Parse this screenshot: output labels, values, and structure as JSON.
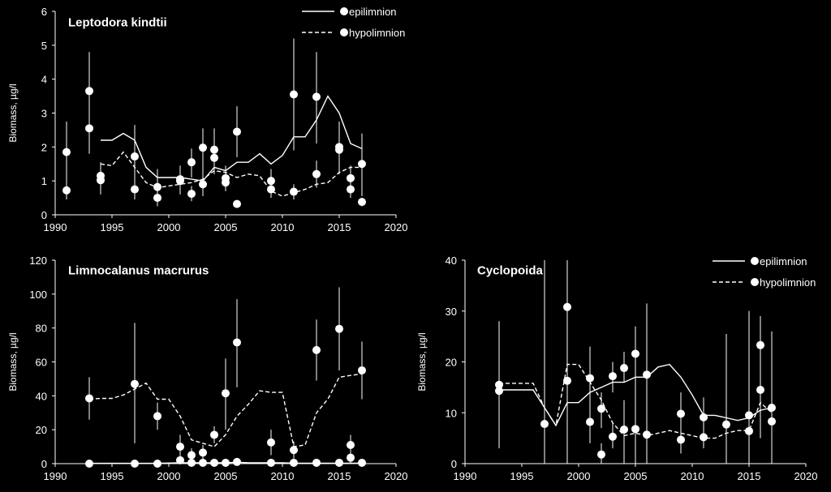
{
  "colors": {
    "background": "#000000",
    "foreground": "#ffffff"
  },
  "chart_data": [
    {
      "type": "scatter",
      "title": "Leptodora kindtii",
      "ylabel": "Biomass, µg/l",
      "xlabel": "",
      "xlim": [
        1990,
        2020
      ],
      "ylim": [
        0,
        6
      ],
      "xticks": [
        1990,
        1995,
        2000,
        2005,
        2010,
        2015,
        2020
      ],
      "yticks": [
        0,
        1,
        2,
        3,
        4,
        5,
        6
      ],
      "grid": false,
      "legend_position": "top-right",
      "legend": [
        {
          "label": "epilimnion",
          "line": "solid"
        },
        {
          "label": "hypolimnion",
          "line": "dashed"
        }
      ],
      "lines": [
        {
          "name": "epilimnion",
          "style": "solid",
          "x": [
            1994,
            1995,
            1996,
            1997,
            1998,
            1999,
            2000,
            2001,
            2002,
            2003,
            2004,
            2005,
            2006,
            2007,
            2008,
            2009,
            2010,
            2011,
            2012,
            2013,
            2014,
            2015,
            2016,
            2017
          ],
          "y": [
            2.2,
            2.2,
            2.4,
            2.2,
            1.4,
            1.1,
            1.1,
            1.1,
            1.05,
            1.0,
            1.4,
            1.3,
            1.55,
            1.55,
            1.8,
            1.5,
            1.75,
            2.3,
            2.3,
            2.8,
            3.5,
            3.0,
            2.1,
            1.95
          ]
        },
        {
          "name": "hypolimnion",
          "style": "dashed",
          "x": [
            1994,
            1995,
            1996,
            1997,
            1998,
            1999,
            2000,
            2001,
            2002,
            2003,
            2004,
            2005,
            2006,
            2007,
            2008,
            2009,
            2010,
            2011,
            2012,
            2013,
            2014,
            2015,
            2016,
            2017
          ],
          "y": [
            1.5,
            1.45,
            1.85,
            1.4,
            0.95,
            0.8,
            0.85,
            0.9,
            0.95,
            1.05,
            1.3,
            1.25,
            1.1,
            1.2,
            1.15,
            0.7,
            0.55,
            0.65,
            0.75,
            0.9,
            0.95,
            1.25,
            1.4,
            1.4
          ]
        }
      ],
      "points": [
        {
          "x": 1991,
          "y": 1.85,
          "lo": 0.7,
          "hi": 2.75
        },
        {
          "x": 1991,
          "y": 0.72,
          "lo": 0.45,
          "hi": 1.0
        },
        {
          "x": 1993,
          "y": 3.65,
          "lo": 2.5,
          "hi": 4.8
        },
        {
          "x": 1993,
          "y": 2.55,
          "lo": 1.8,
          "hi": 3.3
        },
        {
          "x": 1994,
          "y": 1.15,
          "lo": 0.75,
          "hi": 1.55
        },
        {
          "x": 1994,
          "y": 1.02,
          "lo": 0.6,
          "hi": 1.35
        },
        {
          "x": 1997,
          "y": 1.72,
          "lo": 0.8,
          "hi": 2.65
        },
        {
          "x": 1997,
          "y": 0.75,
          "lo": 0.45,
          "hi": 1.0
        },
        {
          "x": 1999,
          "y": 0.82,
          "lo": 0.25,
          "hi": 1.35
        },
        {
          "x": 1999,
          "y": 0.5,
          "lo": 0.25,
          "hi": 0.75
        },
        {
          "x": 2001,
          "y": 1.05,
          "lo": 0.6,
          "hi": 1.45
        },
        {
          "x": 2001,
          "y": 1.0,
          "lo": 0.7,
          "hi": 1.3
        },
        {
          "x": 2002,
          "y": 1.55,
          "lo": 1.1,
          "hi": 1.95
        },
        {
          "x": 2002,
          "y": 0.62,
          "lo": 0.4,
          "hi": 0.85
        },
        {
          "x": 2003,
          "y": 1.98,
          "lo": 1.2,
          "hi": 2.55
        },
        {
          "x": 2003,
          "y": 0.9,
          "lo": 0.55,
          "hi": 1.25
        },
        {
          "x": 2004,
          "y": 1.92,
          "lo": 1.2,
          "hi": 2.55
        },
        {
          "x": 2004,
          "y": 1.68,
          "lo": 1.2,
          "hi": 2.1
        },
        {
          "x": 2005,
          "y": 1.08,
          "lo": 0.7,
          "hi": 1.45
        },
        {
          "x": 2005,
          "y": 0.95,
          "lo": 0.7,
          "hi": 1.25
        },
        {
          "x": 2006,
          "y": 2.45,
          "lo": 1.7,
          "hi": 3.2
        },
        {
          "x": 2006,
          "y": 0.32,
          "lo": 0.32,
          "hi": 0.32
        },
        {
          "x": 2009,
          "y": 1.0,
          "lo": 0.6,
          "hi": 1.35
        },
        {
          "x": 2009,
          "y": 0.75,
          "lo": 0.5,
          "hi": 1.0
        },
        {
          "x": 2011,
          "y": 3.55,
          "lo": 1.9,
          "hi": 5.2
        },
        {
          "x": 2011,
          "y": 0.68,
          "lo": 0.45,
          "hi": 0.9
        },
        {
          "x": 2013,
          "y": 3.48,
          "lo": 2.1,
          "hi": 4.8
        },
        {
          "x": 2013,
          "y": 1.2,
          "lo": 0.8,
          "hi": 1.6
        },
        {
          "x": 2015,
          "y": 2.0,
          "lo": 1.2,
          "hi": 2.75
        },
        {
          "x": 2015,
          "y": 1.92,
          "lo": 1.6,
          "hi": 2.2
        },
        {
          "x": 2016,
          "y": 1.08,
          "lo": 0.75,
          "hi": 1.45
        },
        {
          "x": 2016,
          "y": 0.75,
          "lo": 0.5,
          "hi": 1.0
        },
        {
          "x": 2017,
          "y": 1.5,
          "lo": 0.55,
          "hi": 2.4
        },
        {
          "x": 2017,
          "y": 0.38,
          "lo": 0.25,
          "hi": 0.5
        }
      ]
    },
    {
      "type": "scatter",
      "title": "Limnocalanus macrurus",
      "ylabel": "Biomass, µg/l",
      "xlabel": "",
      "xlim": [
        1990,
        2020
      ],
      "ylim": [
        0,
        120
      ],
      "xticks": [
        1990,
        1995,
        2000,
        2005,
        2010,
        2015,
        2020
      ],
      "yticks": [
        0,
        20,
        40,
        60,
        80,
        100,
        120
      ],
      "grid": false,
      "legend": [],
      "lines": [
        {
          "name": "epilimnion",
          "style": "solid",
          "x": [
            1993,
            1995,
            1997,
            1999,
            2001,
            2002,
            2003,
            2004,
            2005,
            2006,
            2007,
            2008,
            2009,
            2010,
            2011,
            2012,
            2013,
            2014,
            2015,
            2016,
            2017
          ],
          "y": [
            0.2,
            0.2,
            0.2,
            0.2,
            0.5,
            0.5,
            0.5,
            0.5,
            0.5,
            0.8,
            0.5,
            0.5,
            0.5,
            0.5,
            0.3,
            0.3,
            0.3,
            0.3,
            0.3,
            0.3,
            0.3
          ]
        },
        {
          "name": "hypolimnion",
          "style": "dashed",
          "x": [
            1993,
            1994,
            1995,
            1996,
            1997,
            1998,
            1999,
            2000,
            2001,
            2002,
            2003,
            2004,
            2005,
            2006,
            2007,
            2008,
            2009,
            2010,
            2011,
            2012,
            2013,
            2014,
            2015,
            2016,
            2017
          ],
          "y": [
            38,
            38.5,
            38.5,
            40.5,
            44,
            47.5,
            38,
            38,
            28,
            14,
            12,
            10,
            17,
            28,
            35,
            43,
            42,
            42,
            10,
            11,
            30,
            38,
            51,
            52,
            53
          ]
        }
      ],
      "points": [
        {
          "x": 1993,
          "y": 38.5,
          "lo": 26,
          "hi": 51
        },
        {
          "x": 1993,
          "y": 0,
          "lo": 0,
          "hi": 0
        },
        {
          "x": 1997,
          "y": 47,
          "lo": 12,
          "hi": 83
        },
        {
          "x": 1997,
          "y": 0,
          "lo": 0,
          "hi": 0
        },
        {
          "x": 1999,
          "y": 28,
          "lo": 20,
          "hi": 36
        },
        {
          "x": 1999,
          "y": 0,
          "lo": 0,
          "hi": 0
        },
        {
          "x": 2001,
          "y": 10,
          "lo": 3,
          "hi": 17
        },
        {
          "x": 2001,
          "y": 2,
          "lo": 0,
          "hi": 4
        },
        {
          "x": 2002,
          "y": 5,
          "lo": 0,
          "hi": 9
        },
        {
          "x": 2002,
          "y": 0.5,
          "lo": 0,
          "hi": 1
        },
        {
          "x": 2003,
          "y": 6.5,
          "lo": 2,
          "hi": 11
        },
        {
          "x": 2003,
          "y": 0.5,
          "lo": 0,
          "hi": 1
        },
        {
          "x": 2004,
          "y": 17,
          "lo": 12,
          "hi": 22
        },
        {
          "x": 2004,
          "y": 0.5,
          "lo": 0,
          "hi": 1
        },
        {
          "x": 2005,
          "y": 41.5,
          "lo": 20,
          "hi": 62
        },
        {
          "x": 2005,
          "y": 0.5,
          "lo": 0,
          "hi": 1
        },
        {
          "x": 2006,
          "y": 71.5,
          "lo": 45,
          "hi": 97
        },
        {
          "x": 2006,
          "y": 1,
          "lo": 0,
          "hi": 2
        },
        {
          "x": 2009,
          "y": 12.5,
          "lo": 5,
          "hi": 20
        },
        {
          "x": 2009,
          "y": 0.5,
          "lo": 0,
          "hi": 1
        },
        {
          "x": 2011,
          "y": 8,
          "lo": 3,
          "hi": 13
        },
        {
          "x": 2011,
          "y": 0.5,
          "lo": 0,
          "hi": 1
        },
        {
          "x": 2013,
          "y": 67,
          "lo": 49,
          "hi": 85
        },
        {
          "x": 2013,
          "y": 0.5,
          "lo": 0,
          "hi": 1
        },
        {
          "x": 2015,
          "y": 79.5,
          "lo": 55,
          "hi": 104
        },
        {
          "x": 2015,
          "y": 0.5,
          "lo": 0,
          "hi": 1
        },
        {
          "x": 2016,
          "y": 11,
          "lo": 5,
          "hi": 17
        },
        {
          "x": 2016,
          "y": 3.5,
          "lo": 0,
          "hi": 7
        },
        {
          "x": 2017,
          "y": 55,
          "lo": 38,
          "hi": 72
        },
        {
          "x": 2017,
          "y": 0.5,
          "lo": 0,
          "hi": 1
        }
      ]
    },
    {
      "type": "scatter",
      "title": "Cyclopoida",
      "ylabel": "Biomass, µg/l",
      "xlabel": "",
      "xlim": [
        1990,
        2020
      ],
      "ylim": [
        0,
        40
      ],
      "xticks": [
        1990,
        1995,
        2000,
        2005,
        2010,
        2015,
        2020
      ],
      "yticks": [
        0,
        10,
        20,
        30,
        40
      ],
      "grid": false,
      "legend_position": "top-right",
      "legend": [
        {
          "label": "epilimnion",
          "line": "solid"
        },
        {
          "label": "hypolimnion",
          "line": "dashed"
        }
      ],
      "lines": [
        {
          "name": "epilimnion",
          "style": "solid",
          "x": [
            1993,
            1994,
            1995,
            1996,
            1997,
            1998,
            1999,
            2000,
            2001,
            2002,
            2003,
            2004,
            2005,
            2006,
            2007,
            2008,
            2009,
            2010,
            2011,
            2012,
            2013,
            2014,
            2015,
            2016,
            2017
          ],
          "y": [
            14.5,
            14.5,
            14.5,
            14.5,
            11,
            7.5,
            12,
            12,
            14,
            15,
            16,
            16,
            17,
            17,
            19,
            19.5,
            17,
            13.5,
            9.5,
            9.5,
            9,
            8.5,
            9,
            10.5,
            11
          ]
        },
        {
          "name": "hypolimnion",
          "style": "dashed",
          "x": [
            1993,
            1994,
            1995,
            1996,
            1997,
            1998,
            1999,
            2000,
            2001,
            2002,
            2003,
            2004,
            2005,
            2006,
            2007,
            2008,
            2009,
            2010,
            2011,
            2012,
            2013,
            2014,
            2015,
            2016,
            2017
          ],
          "y": [
            15.8,
            15.8,
            15.8,
            15.8,
            11,
            7.5,
            19.5,
            19.5,
            16,
            12.5,
            8,
            5.5,
            6,
            5.5,
            6,
            6.5,
            6,
            5.5,
            5,
            5,
            6,
            6.5,
            6.5,
            12,
            10
          ]
        }
      ],
      "points": [
        {
          "x": 1993,
          "y": 15.5,
          "lo": 3,
          "hi": 28
        },
        {
          "x": 1993,
          "y": 14.3,
          "lo": 14.3,
          "hi": 14.3
        },
        {
          "x": 1997,
          "y": 7.8,
          "lo": 0,
          "hi": 40
        },
        {
          "x": 1999,
          "y": 30.8,
          "lo": 0,
          "hi": 40
        },
        {
          "x": 1999,
          "y": 16.3,
          "lo": 12,
          "hi": 20
        },
        {
          "x": 2001,
          "y": 16.8,
          "lo": 10,
          "hi": 23
        },
        {
          "x": 2001,
          "y": 8.2,
          "lo": 4,
          "hi": 12
        },
        {
          "x": 2002,
          "y": 10.8,
          "lo": 7,
          "hi": 14
        },
        {
          "x": 2002,
          "y": 1.8,
          "lo": 0,
          "hi": 4
        },
        {
          "x": 2003,
          "y": 17.2,
          "lo": 14,
          "hi": 20
        },
        {
          "x": 2003,
          "y": 5.3,
          "lo": 3,
          "hi": 8
        },
        {
          "x": 2004,
          "y": 18.8,
          "lo": 16,
          "hi": 22
        },
        {
          "x": 2004,
          "y": 6.7,
          "lo": 0,
          "hi": 12.5
        },
        {
          "x": 2005,
          "y": 21.6,
          "lo": 16,
          "hi": 27
        },
        {
          "x": 2005,
          "y": 6.8,
          "lo": 0,
          "hi": 26
        },
        {
          "x": 2006,
          "y": 17.5,
          "lo": 3,
          "hi": 31.5
        },
        {
          "x": 2006,
          "y": 5.7,
          "lo": 0,
          "hi": 11
        },
        {
          "x": 2009,
          "y": 9.8,
          "lo": 5,
          "hi": 14
        },
        {
          "x": 2009,
          "y": 4.7,
          "lo": 2,
          "hi": 7
        },
        {
          "x": 2011,
          "y": 9.1,
          "lo": 5,
          "hi": 13
        },
        {
          "x": 2011,
          "y": 5.2,
          "lo": 3,
          "hi": 7
        },
        {
          "x": 2013,
          "y": 7.7,
          "lo": 0,
          "hi": 25.5
        },
        {
          "x": 2015,
          "y": 9.5,
          "lo": 0,
          "hi": 30
        },
        {
          "x": 2015,
          "y": 6.4,
          "lo": 0,
          "hi": 30
        },
        {
          "x": 2016,
          "y": 23.3,
          "lo": 17,
          "hi": 29
        },
        {
          "x": 2016,
          "y": 14.5,
          "lo": 5,
          "hi": 24
        },
        {
          "x": 2017,
          "y": 11,
          "lo": 0,
          "hi": 26
        },
        {
          "x": 2017,
          "y": 8.3,
          "lo": 2,
          "hi": 14
        }
      ]
    }
  ]
}
